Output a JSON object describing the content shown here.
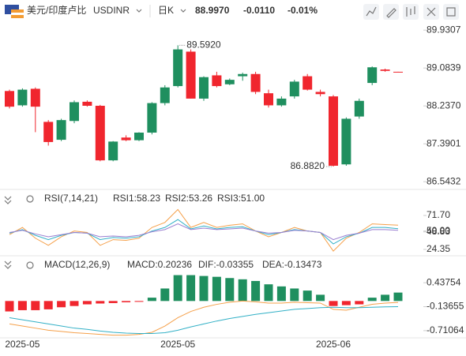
{
  "header": {
    "pair": "美元/印度卢比",
    "symbol": "USDINR",
    "interval": "日K",
    "price": "88.9970",
    "change": "-0.0110",
    "change_pct": "-0.01%"
  },
  "chart_data": [
    {
      "type": "candlestick",
      "categories": [
        null,
        "2025-05",
        null,
        null,
        null,
        null,
        null,
        null,
        null,
        null,
        null,
        null,
        null,
        "2025-05",
        null,
        null,
        null,
        null,
        null,
        null,
        null,
        null,
        null,
        null,
        null,
        "2025-06",
        null,
        null,
        null,
        null,
        null
      ],
      "open": [
        88.57,
        88.25,
        88.62,
        87.88,
        87.48,
        87.9,
        88.33,
        88.24,
        87.02,
        87.53,
        87.47,
        87.64,
        88.3,
        88.68,
        89.45,
        88.4,
        88.92,
        88.72,
        88.9,
        88.95,
        88.52,
        88.25,
        88.45,
        88.9,
        88.55,
        88.45,
        86.93,
        88.0,
        88.75,
        89.05,
        89.0
      ],
      "high": [
        88.6,
        88.63,
        88.65,
        87.92,
        87.95,
        88.36,
        88.36,
        88.26,
        87.45,
        87.58,
        87.65,
        88.32,
        88.7,
        89.592,
        89.5,
        88.9,
        89.0,
        88.85,
        88.98,
        89.0,
        88.6,
        88.45,
        88.82,
        88.95,
        88.6,
        88.48,
        87.98,
        88.4,
        89.12,
        89.07,
        89.0
      ],
      "low": [
        88.18,
        88.22,
        87.65,
        87.35,
        87.45,
        87.85,
        88.22,
        87.0,
        87.0,
        87.45,
        87.45,
        87.6,
        88.25,
        88.65,
        88.4,
        88.35,
        88.65,
        88.7,
        88.8,
        88.5,
        88.2,
        88.22,
        88.4,
        88.58,
        88.45,
        86.882,
        86.9,
        87.95,
        88.7,
        89.0,
        88.99
      ],
      "close": [
        88.22,
        88.6,
        88.22,
        87.43,
        87.92,
        88.32,
        88.24,
        87.02,
        87.44,
        87.47,
        87.64,
        88.3,
        88.65,
        89.5,
        88.4,
        88.88,
        88.68,
        88.82,
        88.95,
        88.55,
        88.25,
        88.4,
        88.78,
        88.6,
        88.5,
        86.9,
        87.95,
        88.35,
        89.1,
        89.02,
        88.997
      ],
      "up_color": "#1f8f5f",
      "down_color": "#f0262e",
      "ylim": [
        86.37,
        90.11
      ],
      "yticks": [
        89.9307,
        89.0839,
        {
          "value": 88.237,
          "label": "88.2370"
        },
        87.3901,
        86.5432
      ],
      "annotations": [
        {
          "text": "89.5920",
          "value": 89.592
        },
        {
          "text": "86.8820",
          "value": 86.882
        }
      ]
    },
    {
      "type": "line",
      "title": "RSI(7,14,21)",
      "series": [
        {
          "name": "RSI1:58.23",
          "color": "#f5a04a",
          "values": [
            45,
            55,
            40,
            30,
            42,
            50,
            48,
            30,
            38,
            37,
            40,
            55,
            62,
            80,
            55,
            62,
            55,
            58,
            60,
            50,
            42,
            48,
            55,
            50,
            48,
            22,
            40,
            48,
            60,
            59,
            58.23
          ]
        },
        {
          "name": "RSI2:53.26",
          "color": "#32b0c6",
          "values": [
            47,
            52,
            44,
            38,
            44,
            48,
            47,
            38,
            41,
            40,
            42,
            50,
            55,
            66,
            53,
            57,
            53,
            55,
            56,
            50,
            45,
            48,
            52,
            50,
            48,
            32,
            42,
            47,
            55,
            55,
            53.26
          ]
        },
        {
          "name": "RSI3:51.00",
          "color": "#9a7fd1",
          "values": [
            48,
            51,
            46,
            42,
            45,
            48,
            47,
            42,
            43,
            42,
            44,
            49,
            52,
            60,
            52,
            54,
            52,
            53,
            54,
            50,
            47,
            48,
            51,
            50,
            48,
            38,
            44,
            47,
            52,
            52,
            51.0
          ]
        }
      ],
      "ylim": [
        17.7,
        88.2
      ],
      "yticks": [
        {
          "value": 71.7,
          "label": "71.70"
        },
        {
          "value": 50,
          "label": "50.00"
        },
        48.83,
        24.35
      ]
    },
    {
      "type": "macd",
      "title": "MACD(12,26,9)",
      "series": [
        {
          "name": "MACD:0.20236",
          "color": "#9a7fd1",
          "kind": "histogram",
          "up_color": "#1f8f5f",
          "down_color": "#f0262e",
          "values": [
            -0.25,
            -0.22,
            -0.22,
            -0.2,
            -0.15,
            -0.12,
            -0.08,
            -0.06,
            -0.05,
            -0.03,
            -0.02,
            0.08,
            0.3,
            0.62,
            0.62,
            0.6,
            0.58,
            0.55,
            0.52,
            0.48,
            0.4,
            0.35,
            0.3,
            0.25,
            0.15,
            -0.12,
            -0.1,
            -0.08,
            0.08,
            0.15,
            0.20236
          ]
        },
        {
          "name": "DIF:-0.03355",
          "color": "#f5a04a",
          "kind": "line",
          "values": [
            -0.55,
            -0.6,
            -0.65,
            -0.7,
            -0.73,
            -0.76,
            -0.78,
            -0.8,
            -0.82,
            -0.82,
            -0.8,
            -0.75,
            -0.6,
            -0.4,
            -0.25,
            -0.15,
            -0.08,
            -0.03,
            0.0,
            -0.02,
            -0.05,
            -0.05,
            -0.03,
            -0.04,
            -0.05,
            -0.2,
            -0.22,
            -0.15,
            -0.08,
            -0.05,
            -0.03355
          ]
        },
        {
          "name": "DEA:-0.13473",
          "color": "#32b0c6",
          "kind": "line",
          "values": [
            -0.4,
            -0.45,
            -0.5,
            -0.55,
            -0.6,
            -0.65,
            -0.68,
            -0.72,
            -0.75,
            -0.77,
            -0.78,
            -0.78,
            -0.76,
            -0.7,
            -0.62,
            -0.55,
            -0.48,
            -0.42,
            -0.37,
            -0.32,
            -0.28,
            -0.24,
            -0.2,
            -0.18,
            -0.16,
            -0.15,
            -0.16,
            -0.16,
            -0.15,
            -0.14,
            -0.13473
          ]
        }
      ],
      "ylim": [
        -0.883,
        0.744
      ],
      "yticks": [
        0.43754,
        -0.13655,
        -0.71064
      ]
    }
  ]
}
